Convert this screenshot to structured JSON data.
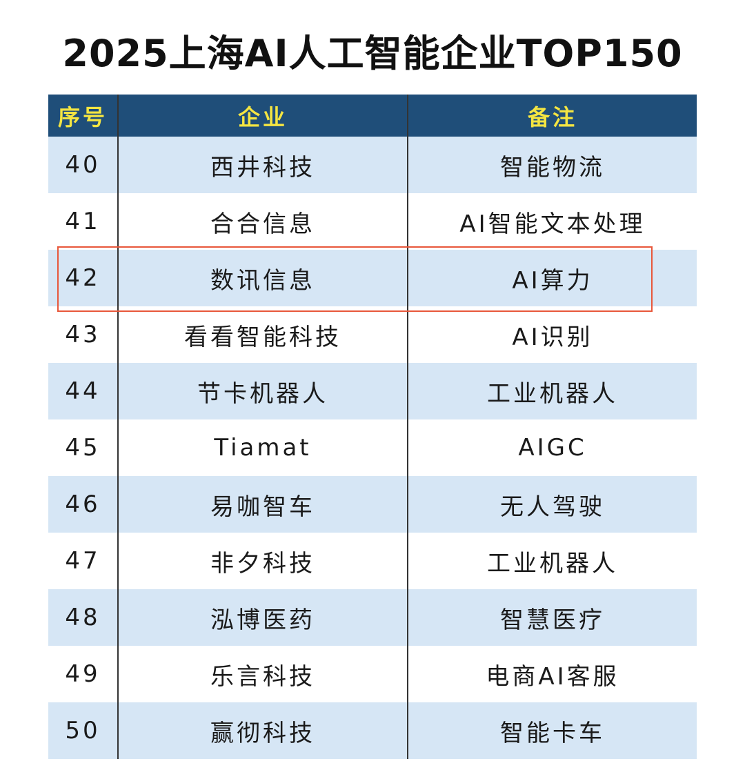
{
  "title": "2025上海AI人工智能企业TOP150",
  "table": {
    "headers": [
      "序号",
      "企业",
      "备注"
    ],
    "rows": [
      {
        "no": "40",
        "company": "西井科技",
        "note": "智能物流"
      },
      {
        "no": "41",
        "company": "合合信息",
        "note": "AI智能文本处理"
      },
      {
        "no": "42",
        "company": "数讯信息",
        "note": "AI算力"
      },
      {
        "no": "43",
        "company": "看看智能科技",
        "note": "AI识别"
      },
      {
        "no": "44",
        "company": "节卡机器人",
        "note": "工业机器人"
      },
      {
        "no": "45",
        "company": "Tiamat",
        "note": "AIGC"
      },
      {
        "no": "46",
        "company": "易咖智车",
        "note": "无人驾驶"
      },
      {
        "no": "47",
        "company": "非夕科技",
        "note": "工业机器人"
      },
      {
        "no": "48",
        "company": "泓博医药",
        "note": "智慧医疗"
      },
      {
        "no": "49",
        "company": "乐言科技",
        "note": "电商AI客服"
      },
      {
        "no": "50",
        "company": "赢彻科技",
        "note": "智能卡车"
      }
    ]
  },
  "colors": {
    "header_bg": "#1f4e79",
    "header_text": "#f4e542",
    "band_bg": "#d6e6f5",
    "highlight_border": "#e8573a"
  }
}
